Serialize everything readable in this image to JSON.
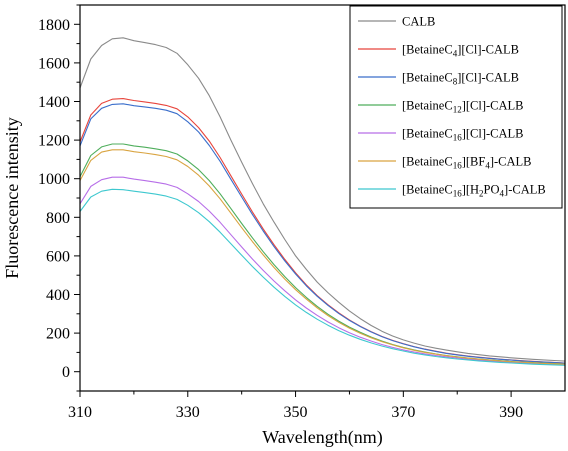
{
  "chart_data": {
    "type": "line",
    "title": "",
    "xlabel": "Wavelength(nm)",
    "ylabel": "Fluorescence intensity",
    "xlim": [
      310,
      400
    ],
    "ylim": [
      -100,
      1900
    ],
    "x_ticks": [
      310,
      330,
      350,
      370,
      390
    ],
    "x_tick_labels": [
      "310",
      "330",
      "350",
      "370",
      "390"
    ],
    "y_ticks": [
      0,
      200,
      400,
      600,
      800,
      1000,
      1200,
      1400,
      1600,
      1800
    ],
    "y_tick_labels": [
      "0",
      "200",
      "400",
      "600",
      "800",
      "1000",
      "1200",
      "1400",
      "1600",
      "1800"
    ],
    "grid": false,
    "legend": "top-right, boxed",
    "x": [
      310,
      312,
      314,
      316,
      318,
      320,
      322,
      324,
      326,
      328,
      330,
      332,
      334,
      336,
      338,
      340,
      342,
      344,
      346,
      348,
      350,
      352,
      354,
      356,
      358,
      360,
      362,
      364,
      366,
      368,
      370,
      372,
      374,
      376,
      378,
      380,
      382,
      384,
      386,
      388,
      390,
      392,
      394,
      396,
      398,
      400
    ],
    "series": [
      {
        "name": "CALB",
        "label_parts": [
          {
            "t": "CALB"
          }
        ],
        "color": "#8a8a8a",
        "values": [
          1470,
          1620,
          1690,
          1725,
          1730,
          1715,
          1705,
          1695,
          1680,
          1650,
          1590,
          1520,
          1430,
          1320,
          1200,
          1085,
          975,
          870,
          775,
          685,
          600,
          530,
          465,
          410,
          360,
          315,
          275,
          240,
          210,
          185,
          165,
          148,
          133,
          122,
          112,
          103,
          95,
          88,
          82,
          77,
          72,
          68,
          64,
          61,
          58,
          55
        ]
      },
      {
        "name": "[BetaineC4][Cl]-CALB",
        "label_parts": [
          {
            "t": "[BetaineC"
          },
          {
            "t": "4",
            "sub": true
          },
          {
            "t": "][Cl]-CALB"
          }
        ],
        "color": "#e8453c",
        "values": [
          1190,
          1330,
          1390,
          1412,
          1415,
          1405,
          1398,
          1390,
          1380,
          1362,
          1320,
          1265,
          1195,
          1110,
          1015,
          920,
          828,
          740,
          658,
          582,
          512,
          450,
          395,
          347,
          305,
          268,
          236,
          208,
          183,
          162,
          145,
          130,
          117,
          106,
          96,
          88,
          81,
          75,
          70,
          65,
          61,
          57,
          54,
          51,
          48,
          45
        ]
      },
      {
        "name": "[BetaineC8][Cl]-CALB",
        "label_parts": [
          {
            "t": "[BetaineC"
          },
          {
            "t": "8",
            "sub": true
          },
          {
            "t": "][Cl]-CALB"
          }
        ],
        "color": "#3a6ecb",
        "values": [
          1170,
          1310,
          1365,
          1385,
          1388,
          1378,
          1372,
          1365,
          1355,
          1337,
          1295,
          1242,
          1172,
          1090,
          997,
          905,
          815,
          729,
          648,
          574,
          506,
          445,
          391,
          344,
          302,
          266,
          234,
          206,
          182,
          161,
          144,
          129,
          116,
          105,
          95,
          87,
          80,
          74,
          69,
          64,
          60,
          56,
          53,
          50,
          47,
          44
        ]
      },
      {
        "name": "[BetaineC12][Cl]-CALB",
        "label_parts": [
          {
            "t": "[BetaineC"
          },
          {
            "t": "12",
            "sub": true
          },
          {
            "t": "][Cl]-CALB"
          }
        ],
        "color": "#4fae5c",
        "values": [
          1010,
          1120,
          1165,
          1180,
          1180,
          1170,
          1163,
          1155,
          1145,
          1128,
          1092,
          1047,
          990,
          922,
          845,
          768,
          694,
          622,
          555,
          493,
          436,
          385,
          339,
          298,
          262,
          231,
          204,
          180,
          159,
          141,
          126,
          113,
          102,
          92,
          84,
          77,
          71,
          66,
          61,
          57,
          53,
          50,
          47,
          44,
          42,
          40
        ]
      },
      {
        "name": "[BetaineC16][Cl]-CALB",
        "label_parts": [
          {
            "t": "[BetaineC"
          },
          {
            "t": "16",
            "sub": true
          },
          {
            "t": "][Cl]-CALB"
          }
        ],
        "color": "#b76ee8",
        "values": [
          870,
          960,
          995,
          1008,
          1008,
          998,
          990,
          982,
          972,
          955,
          922,
          882,
          832,
          774,
          710,
          646,
          584,
          525,
          470,
          419,
          372,
          330,
          292,
          258,
          228,
          202,
          179,
          159,
          141,
          126,
          113,
          102,
          92,
          84,
          77,
          71,
          65,
          60,
          56,
          52,
          49,
          46,
          43,
          41,
          39,
          37
        ]
      },
      {
        "name": "[BetaineC16][BF4]-CALB",
        "label_parts": [
          {
            "t": "[BetaineC"
          },
          {
            "t": "16",
            "sub": true
          },
          {
            "t": "][BF"
          },
          {
            "t": "4",
            "sub": true
          },
          {
            "t": "]-CALB"
          }
        ],
        "color": "#d9a441",
        "values": [
          990,
          1095,
          1138,
          1150,
          1150,
          1140,
          1133,
          1125,
          1115,
          1098,
          1063,
          1018,
          962,
          896,
          821,
          746,
          674,
          605,
          540,
          480,
          425,
          376,
          331,
          291,
          256,
          226,
          199,
          176,
          156,
          139,
          124,
          111,
          100,
          91,
          83,
          76,
          70,
          65,
          60,
          56,
          52,
          49,
          46,
          43,
          41,
          39
        ]
      },
      {
        "name": "[BetaineC16][H2PO4]-CALB",
        "label_parts": [
          {
            "t": "[BetaineC"
          },
          {
            "t": "16",
            "sub": true
          },
          {
            "t": "][H"
          },
          {
            "t": "2",
            "sub": true
          },
          {
            "t": "PO"
          },
          {
            "t": "4",
            "sub": true
          },
          {
            "t": "]-CALB"
          }
        ],
        "color": "#3ec8cf",
        "values": [
          830,
          905,
          935,
          945,
          943,
          935,
          928,
          920,
          910,
          893,
          862,
          824,
          777,
          723,
          663,
          603,
          545,
          490,
          438,
          390,
          346,
          307,
          272,
          241,
          213,
          189,
          168,
          149,
          133,
          119,
          107,
          96,
          87,
          79,
          72,
          66,
          61,
          56,
          52,
          48,
          45,
          42,
          39,
          37,
          35,
          33
        ]
      }
    ]
  }
}
